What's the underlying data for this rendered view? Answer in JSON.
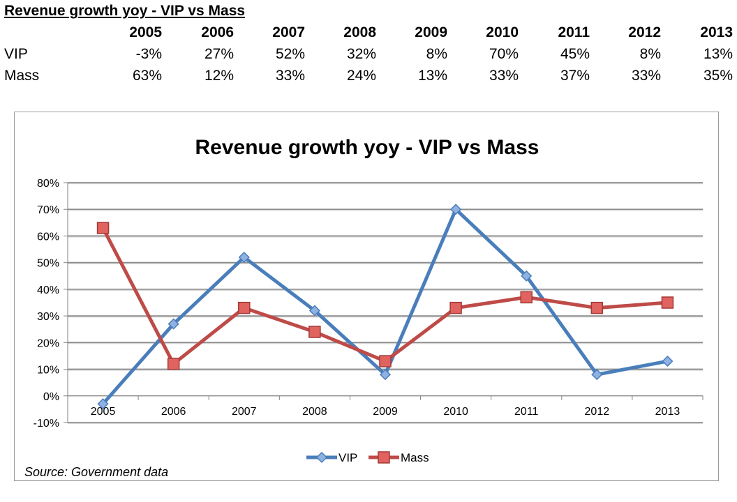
{
  "table": {
    "title": "Revenue growth yoy - VIP vs Mass",
    "years": [
      "2005",
      "2006",
      "2007",
      "2008",
      "2009",
      "2010",
      "2011",
      "2012",
      "2013"
    ],
    "rows": [
      {
        "label": "VIP",
        "values": [
          "-3%",
          "27%",
          "52%",
          "32%",
          "8%",
          "70%",
          "45%",
          "8%",
          "13%"
        ]
      },
      {
        "label": "Mass",
        "values": [
          "63%",
          "12%",
          "33%",
          "24%",
          "13%",
          "33%",
          "37%",
          "33%",
          "35%"
        ]
      }
    ]
  },
  "chart_data": {
    "type": "line",
    "title": "Revenue growth yoy - VIP vs Mass",
    "categories": [
      "2005",
      "2006",
      "2007",
      "2008",
      "2009",
      "2010",
      "2011",
      "2012",
      "2013"
    ],
    "series": [
      {
        "name": "VIP",
        "values": [
          -3,
          27,
          52,
          32,
          8,
          70,
          45,
          8,
          13
        ],
        "color": "#4a7ebb",
        "marker": "diamond"
      },
      {
        "name": "Mass",
        "values": [
          63,
          12,
          33,
          24,
          13,
          33,
          37,
          33,
          35
        ],
        "color": "#be4b48",
        "marker": "square"
      }
    ],
    "ylim": [
      -10,
      80
    ],
    "yticks": [
      -10,
      0,
      10,
      20,
      30,
      40,
      50,
      60,
      70,
      80
    ],
    "ytick_labels": [
      "-10%",
      "0%",
      "10%",
      "20%",
      "30%",
      "40%",
      "50%",
      "60%",
      "70%",
      "80%"
    ],
    "grid": true,
    "legend_position": "bottom",
    "xlabel": "",
    "ylabel": ""
  },
  "footnote": "Source: Government data"
}
